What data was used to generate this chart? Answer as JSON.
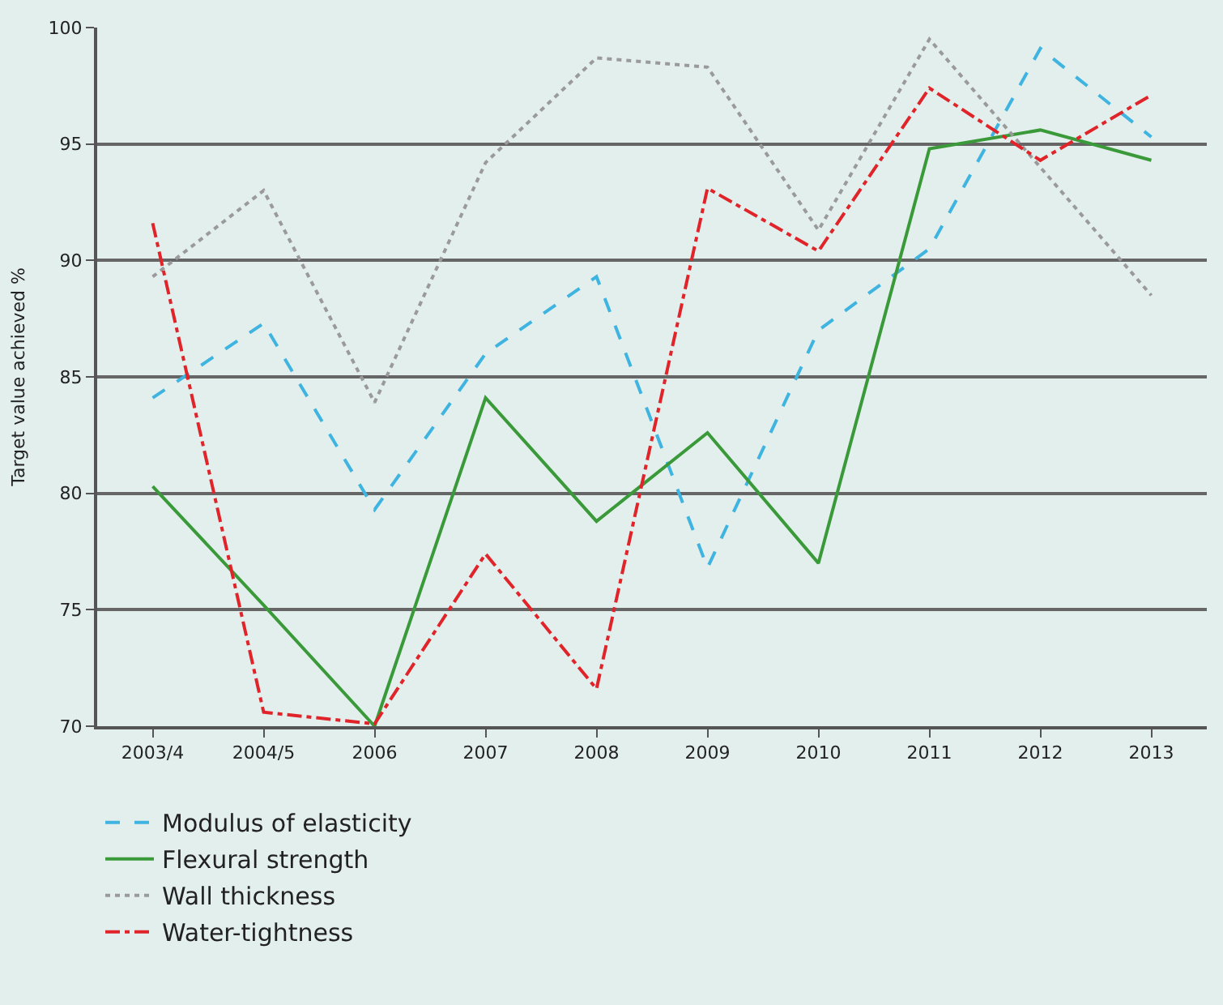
{
  "chart_data": {
    "type": "line",
    "ylabel": "Target value achieved %",
    "categories": [
      "2003/4",
      "2004/5",
      "2006",
      "2007",
      "2008",
      "2009",
      "2010",
      "2011",
      "2012",
      "2013"
    ],
    "series": [
      {
        "name": "Modulus of elasticity",
        "color": "#3fb4e0",
        "line_style": "dashed",
        "values": [
          84.1,
          87.3,
          79.3,
          86.0,
          89.3,
          76.8,
          87.0,
          90.5,
          99.1,
          95.3
        ]
      },
      {
        "name": "Flexural strength",
        "color": "#3a9a3a",
        "line_style": "solid",
        "values": [
          80.3,
          75.2,
          70.0,
          84.1,
          78.8,
          82.6,
          77.0,
          94.8,
          95.6,
          94.3
        ]
      },
      {
        "name": "Wall thickness",
        "color": "#9a9a9a",
        "line_style": "dotted",
        "values": [
          89.3,
          93.0,
          83.9,
          94.2,
          98.7,
          98.3,
          91.3,
          99.5,
          94.0,
          88.5
        ]
      },
      {
        "name": "Water-tightness",
        "color": "#e0242a",
        "line_style": "dashdot",
        "values": [
          91.6,
          70.6,
          70.1,
          77.4,
          71.6,
          93.1,
          90.4,
          97.4,
          94.3,
          97.1
        ]
      }
    ],
    "ylim": [
      70,
      100
    ],
    "yticks": [
      70,
      75,
      80,
      85,
      90,
      95,
      100
    ],
    "grid": "y",
    "legend": "bottom left",
    "marker": "none"
  }
}
